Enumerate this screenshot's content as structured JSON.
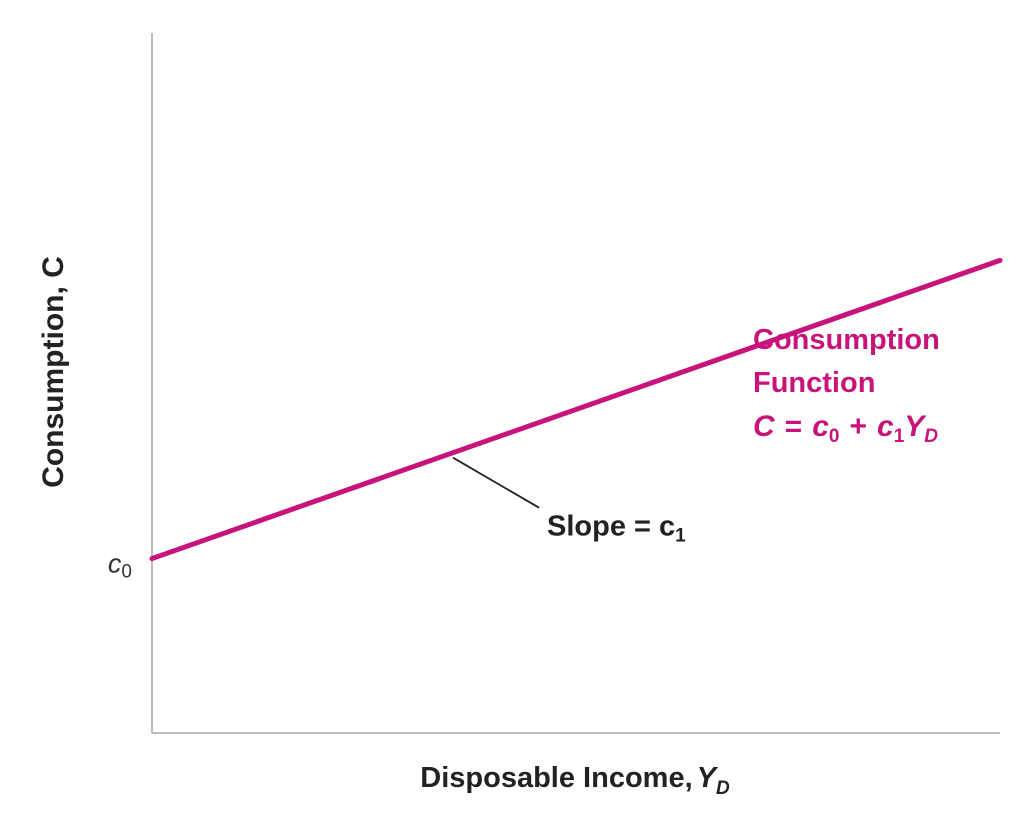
{
  "chart_data": {
    "type": "line",
    "title": "",
    "xlabel": {
      "text": "Disposable Income,",
      "var": "Y",
      "sub": "D"
    },
    "ylabel": "Consumption, C",
    "y_tick": {
      "var": "c",
      "sub": "0"
    },
    "series": [
      {
        "name": "Consumption Function",
        "equation": {
          "lhs": "C",
          "eq": "=",
          "c": "c",
          "c_sub0": "0",
          "plus": "+",
          "c_sub1": "1",
          "y": "Y",
          "y_sub": "D"
        },
        "color": "#c8147a",
        "intercept_label": "c0",
        "slope_label": "c1",
        "x": [
          0,
          10
        ],
        "y": [
          1,
          5
        ]
      }
    ],
    "annotations": [
      {
        "text": "Slope = c",
        "sub": "1",
        "x": 3.55
      }
    ],
    "xlim": [
      0,
      10
    ],
    "ylim": [
      -1.34,
      8.05
    ],
    "grid": false,
    "axis_color": "#bbbbbb"
  }
}
